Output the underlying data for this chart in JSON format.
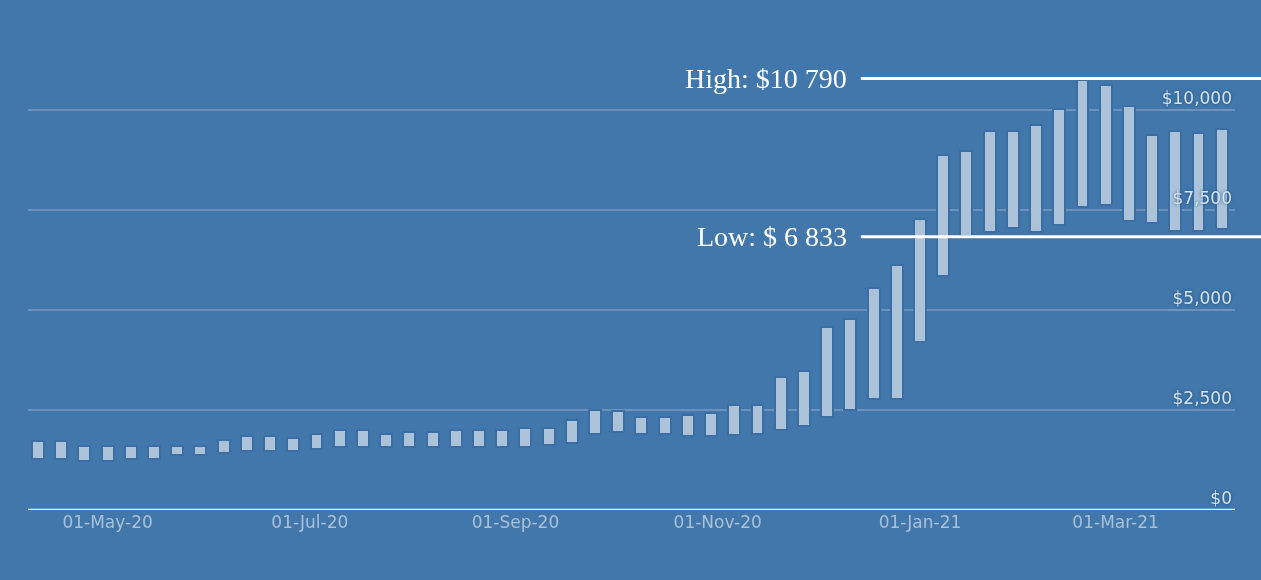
{
  "chart_data": {
    "type": "bar",
    "color": "#abc2d9",
    "x": [
      "2020-04-10",
      "2020-04-17",
      "2020-04-24",
      "2020-05-01",
      "2020-05-08",
      "2020-05-15",
      "2020-05-22",
      "2020-05-29",
      "2020-06-05",
      "2020-06-12",
      "2020-06-19",
      "2020-06-26",
      "2020-07-03",
      "2020-07-10",
      "2020-07-17",
      "2020-07-24",
      "2020-07-31",
      "2020-08-07",
      "2020-08-14",
      "2020-08-21",
      "2020-08-28",
      "2020-09-04",
      "2020-09-11",
      "2020-09-18",
      "2020-09-25",
      "2020-10-02",
      "2020-10-09",
      "2020-10-16",
      "2020-10-23",
      "2020-10-30",
      "2020-11-06",
      "2020-11-13",
      "2020-11-20",
      "2020-11-27",
      "2020-12-04",
      "2020-12-11",
      "2020-12-18",
      "2020-12-25",
      "2021-01-01",
      "2021-01-08",
      "2021-01-15",
      "2021-01-22",
      "2021-01-29",
      "2021-02-05",
      "2021-02-12",
      "2021-02-19",
      "2021-02-26",
      "2021-03-05",
      "2021-03-12",
      "2021-03-19",
      "2021-03-26",
      "2021-04-02"
    ],
    "base": [
      1275,
      1275,
      1225,
      1225,
      1275,
      1275,
      1375,
      1375,
      1425,
      1475,
      1475,
      1475,
      1525,
      1575,
      1575,
      1575,
      1575,
      1575,
      1575,
      1575,
      1575,
      1575,
      1625,
      1675,
      1900,
      1950,
      1900,
      1900,
      1850,
      1850,
      1875,
      1900,
      2000,
      2100,
      2325,
      2500,
      2775,
      2775,
      4200,
      5850,
      6850,
      6950,
      7050,
      6950,
      7125,
      7575,
      7625,
      7225,
      7175,
      6975,
      6975,
      7025
    ],
    "values": [
      450,
      450,
      375,
      375,
      325,
      325,
      225,
      225,
      325,
      375,
      375,
      325,
      375,
      425,
      425,
      325,
      375,
      375,
      425,
      425,
      425,
      475,
      425,
      575,
      600,
      525,
      425,
      425,
      525,
      575,
      750,
      725,
      1325,
      1375,
      2250,
      2275,
      2775,
      3350,
      3075,
      3025,
      2125,
      2525,
      2425,
      2675,
      2900,
      3175,
      3000,
      2875,
      2200,
      2500,
      2450,
      2500
    ],
    "xlim": [
      "2020-04-07",
      "2021-04-06"
    ],
    "xticks": [
      {
        "value": "2020-05-01",
        "label": "01-May-20"
      },
      {
        "value": "2020-07-01",
        "label": "01-Jul-20"
      },
      {
        "value": "2020-09-01",
        "label": "01-Sep-20"
      },
      {
        "value": "2020-11-01",
        "label": "01-Nov-20"
      },
      {
        "value": "2021-01-01",
        "label": "01-Jan-21"
      },
      {
        "value": "2021-03-01",
        "label": "01-Mar-21"
      }
    ],
    "ylim": [
      0,
      12750
    ],
    "yticks": [
      {
        "value": 0,
        "label": "$0"
      },
      {
        "value": 2500,
        "label": "$2,500"
      },
      {
        "value": 5000,
        "label": "$5,000"
      },
      {
        "value": 7500,
        "label": "$7,500"
      },
      {
        "value": 10000,
        "label": "$10,000"
      }
    ],
    "grid": "y",
    "ref_lines": [
      {
        "axis": "y",
        "value": 10790,
        "label": "High: $10 790",
        "color": "#ffffff"
      },
      {
        "axis": "y",
        "value": 6833,
        "label": "Low: $ 6 833",
        "color": "#ffffff"
      }
    ]
  }
}
